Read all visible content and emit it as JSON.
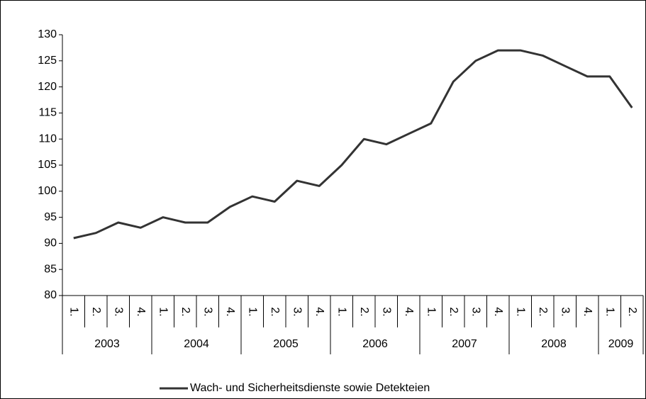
{
  "chart_data": {
    "type": "line",
    "categories": [
      "1.",
      "2.",
      "3.",
      "4.",
      "1.",
      "2.",
      "3.",
      "4.",
      "1.",
      "2.",
      "3.",
      "4.",
      "1.",
      "2.",
      "3.",
      "4.",
      "1.",
      "2.",
      "3.",
      "4.",
      "1.",
      "2.",
      "3.",
      "4.",
      "1.",
      "2."
    ],
    "category_groups": [
      "2003",
      "2004",
      "2005",
      "2006",
      "2007",
      "2008",
      "2009"
    ],
    "series": [
      {
        "name": "Wach- und Sicherheitsdienste sowie Detekteien",
        "color": "#333333",
        "values": [
          91,
          92,
          94,
          93,
          95,
          94,
          94,
          97,
          99,
          98,
          102,
          101,
          105,
          110,
          109,
          111,
          113,
          121,
          125,
          127,
          127,
          126,
          124,
          122,
          122,
          116
        ]
      }
    ],
    "ylim": [
      80,
      130
    ],
    "yticks": [
      80,
      85,
      90,
      95,
      100,
      105,
      110,
      115,
      120,
      125,
      130
    ],
    "grid": false,
    "legend": "bottom"
  }
}
